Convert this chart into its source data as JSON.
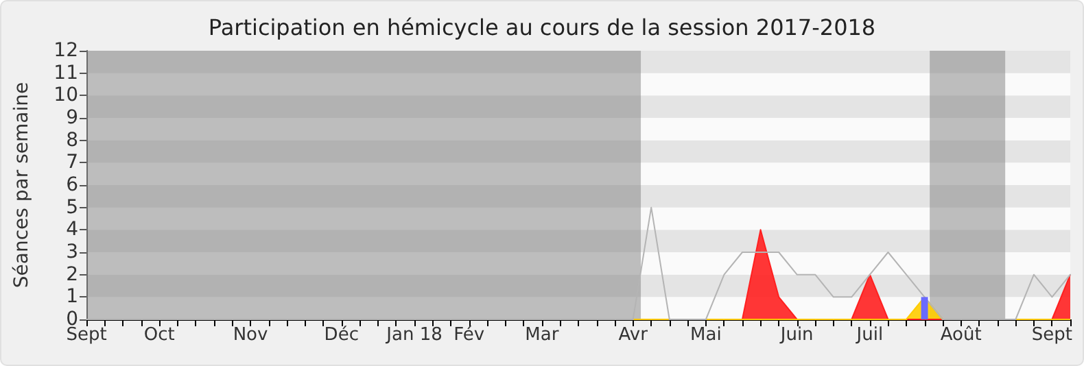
{
  "chart_data": {
    "type": "line",
    "title": "Participation en hémicycle au cours de la session 2017-2018",
    "ylabel": "Séances par semaine",
    "x": [
      "2017-09-11",
      "2017-09-18",
      "2017-09-25",
      "2017-10-02",
      "2017-10-09",
      "2017-10-16",
      "2017-10-23",
      "2017-10-30",
      "2017-11-06",
      "2017-11-13",
      "2017-11-20",
      "2017-11-27",
      "2017-12-04",
      "2017-12-11",
      "2017-12-18",
      "2017-12-25",
      "2018-01-01",
      "2018-01-08",
      "2018-01-15",
      "2018-01-22",
      "2018-01-29",
      "2018-02-05",
      "2018-02-12",
      "2018-02-19",
      "2018-02-26",
      "2018-03-05",
      "2018-03-12",
      "2018-03-19",
      "2018-03-26",
      "2018-04-02",
      "2018-04-09",
      "2018-04-16",
      "2018-04-23",
      "2018-04-30",
      "2018-05-07",
      "2018-05-14",
      "2018-05-21",
      "2018-05-28",
      "2018-06-04",
      "2018-06-11",
      "2018-06-18",
      "2018-06-25",
      "2018-07-02",
      "2018-07-09",
      "2018-07-16",
      "2018-07-23",
      "2018-07-30",
      "2018-08-06",
      "2018-08-13",
      "2018-08-20",
      "2018-08-27",
      "2018-09-03",
      "2018-09-10",
      "2018-09-17",
      "2018-09-24"
    ],
    "series": [
      {
        "color": "#b4b4b4",
        "values": [
          0,
          0,
          0,
          0,
          0,
          0,
          0,
          0,
          0,
          0,
          0,
          0,
          0,
          0,
          0,
          0,
          0,
          0,
          0,
          0,
          0,
          0,
          0,
          0,
          0,
          0,
          0,
          0,
          0,
          0,
          0,
          5,
          0,
          0,
          0,
          2,
          3,
          3,
          3,
          2,
          2,
          1,
          1,
          2,
          3,
          2,
          1,
          0,
          0,
          0,
          0,
          0,
          2,
          1,
          2
        ]
      },
      {
        "type": "area",
        "color": "#ff2020",
        "values": [
          0,
          0,
          0,
          0,
          0,
          0,
          0,
          0,
          0,
          0,
          0,
          0,
          0,
          0,
          0,
          0,
          0,
          0,
          0,
          0,
          0,
          0,
          0,
          0,
          0,
          0,
          0,
          0,
          0,
          0,
          0,
          0,
          0,
          0,
          0,
          0,
          0,
          4,
          1,
          0,
          0,
          0,
          0,
          2,
          0,
          0,
          0,
          0,
          0,
          0,
          0,
          0,
          0,
          0,
          2
        ]
      },
      {
        "type": "area",
        "color": "#ffcc00",
        "values": [
          0,
          0,
          0,
          0,
          0,
          0,
          0,
          0,
          0,
          0,
          0,
          0,
          0,
          0,
          0,
          0,
          0,
          0,
          0,
          0,
          0,
          0,
          0,
          0,
          0,
          0,
          0,
          0,
          0,
          0,
          0,
          0,
          0,
          0,
          0,
          0,
          0,
          0,
          0,
          0,
          0,
          0,
          0,
          0,
          0,
          0,
          1,
          0,
          0,
          0,
          0,
          0,
          0,
          0,
          0
        ]
      },
      {
        "type": "bar",
        "color": "#6a6aff",
        "values": [
          null,
          null,
          null,
          null,
          null,
          null,
          null,
          null,
          null,
          null,
          null,
          null,
          null,
          null,
          null,
          null,
          null,
          null,
          null,
          null,
          null,
          null,
          null,
          null,
          null,
          null,
          null,
          null,
          null,
          null,
          null,
          null,
          null,
          null,
          null,
          null,
          null,
          null,
          null,
          null,
          null,
          null,
          null,
          null,
          null,
          null,
          1,
          null,
          null,
          null,
          null,
          null,
          null,
          null,
          null
        ]
      }
    ],
    "xlim": [
      "2017-09-11",
      "2018-09-24"
    ],
    "xticks": [
      {
        "value": "2017-09-11",
        "label": "Sept"
      },
      {
        "value": "2017-09-18",
        "label": null
      },
      {
        "value": "2017-09-25",
        "label": null
      },
      {
        "value": "2017-10-02",
        "label": null
      },
      {
        "value": "2017-10-09",
        "label": "Oct"
      },
      {
        "value": "2017-10-16",
        "label": null
      },
      {
        "value": "2017-10-23",
        "label": null
      },
      {
        "value": "2017-10-30",
        "label": null
      },
      {
        "value": "2017-11-06",
        "label": null
      },
      {
        "value": "2017-11-13",
        "label": "Nov"
      },
      {
        "value": "2017-11-20",
        "label": null
      },
      {
        "value": "2017-11-27",
        "label": null
      },
      {
        "value": "2017-12-04",
        "label": null
      },
      {
        "value": "2017-12-11",
        "label": null
      },
      {
        "value": "2017-12-18",
        "label": "Déc"
      },
      {
        "value": "2017-12-25",
        "label": null
      },
      {
        "value": "2018-01-01",
        "label": null
      },
      {
        "value": "2018-01-08",
        "label": null
      },
      {
        "value": "2018-01-15",
        "label": "Jan 18"
      },
      {
        "value": "2018-01-22",
        "label": null
      },
      {
        "value": "2018-01-29",
        "label": null
      },
      {
        "value": "2018-02-05",
        "label": "Fév"
      },
      {
        "value": "2018-02-12",
        "label": null
      },
      {
        "value": "2018-02-19",
        "label": null
      },
      {
        "value": "2018-02-26",
        "label": null
      },
      {
        "value": "2018-03-05",
        "label": "Mar"
      },
      {
        "value": "2018-03-12",
        "label": null
      },
      {
        "value": "2018-03-19",
        "label": null
      },
      {
        "value": "2018-03-26",
        "label": null
      },
      {
        "value": "2018-04-02",
        "label": null
      },
      {
        "value": "2018-04-09",
        "label": "Avr"
      },
      {
        "value": "2018-04-16",
        "label": null
      },
      {
        "value": "2018-04-23",
        "label": null
      },
      {
        "value": "2018-04-30",
        "label": null
      },
      {
        "value": "2018-05-07",
        "label": "Mai"
      },
      {
        "value": "2018-05-14",
        "label": null
      },
      {
        "value": "2018-05-21",
        "label": null
      },
      {
        "value": "2018-05-28",
        "label": null
      },
      {
        "value": "2018-06-04",
        "label": null
      },
      {
        "value": "2018-06-11",
        "label": "Juin"
      },
      {
        "value": "2018-06-18",
        "label": null
      },
      {
        "value": "2018-06-25",
        "label": null
      },
      {
        "value": "2018-07-02",
        "label": null
      },
      {
        "value": "2018-07-09",
        "label": "Juil"
      },
      {
        "value": "2018-07-16",
        "label": null
      },
      {
        "value": "2018-07-23",
        "label": null
      },
      {
        "value": "2018-07-30",
        "label": null
      },
      {
        "value": "2018-08-06",
        "label": null
      },
      {
        "value": "2018-08-13",
        "label": "Août"
      },
      {
        "value": "2018-08-20",
        "label": null
      },
      {
        "value": "2018-08-27",
        "label": null
      },
      {
        "value": "2018-09-03",
        "label": null
      },
      {
        "value": "2018-09-10",
        "label": null
      },
      {
        "value": "2018-09-17",
        "label": "Sept"
      },
      {
        "value": "2018-09-24",
        "label": null
      }
    ],
    "ylim": [
      0,
      12
    ],
    "yticks": [
      0,
      1,
      2,
      3,
      4,
      5,
      6,
      7,
      8,
      9,
      10,
      11,
      12
    ],
    "bands": [
      {
        "axis": "x",
        "from": "2017-09-11",
        "to": "2018-04-12",
        "color": "#808080"
      },
      {
        "axis": "x",
        "from": "2018-08-01",
        "to": "2018-08-30",
        "color": "#808080"
      }
    ]
  }
}
